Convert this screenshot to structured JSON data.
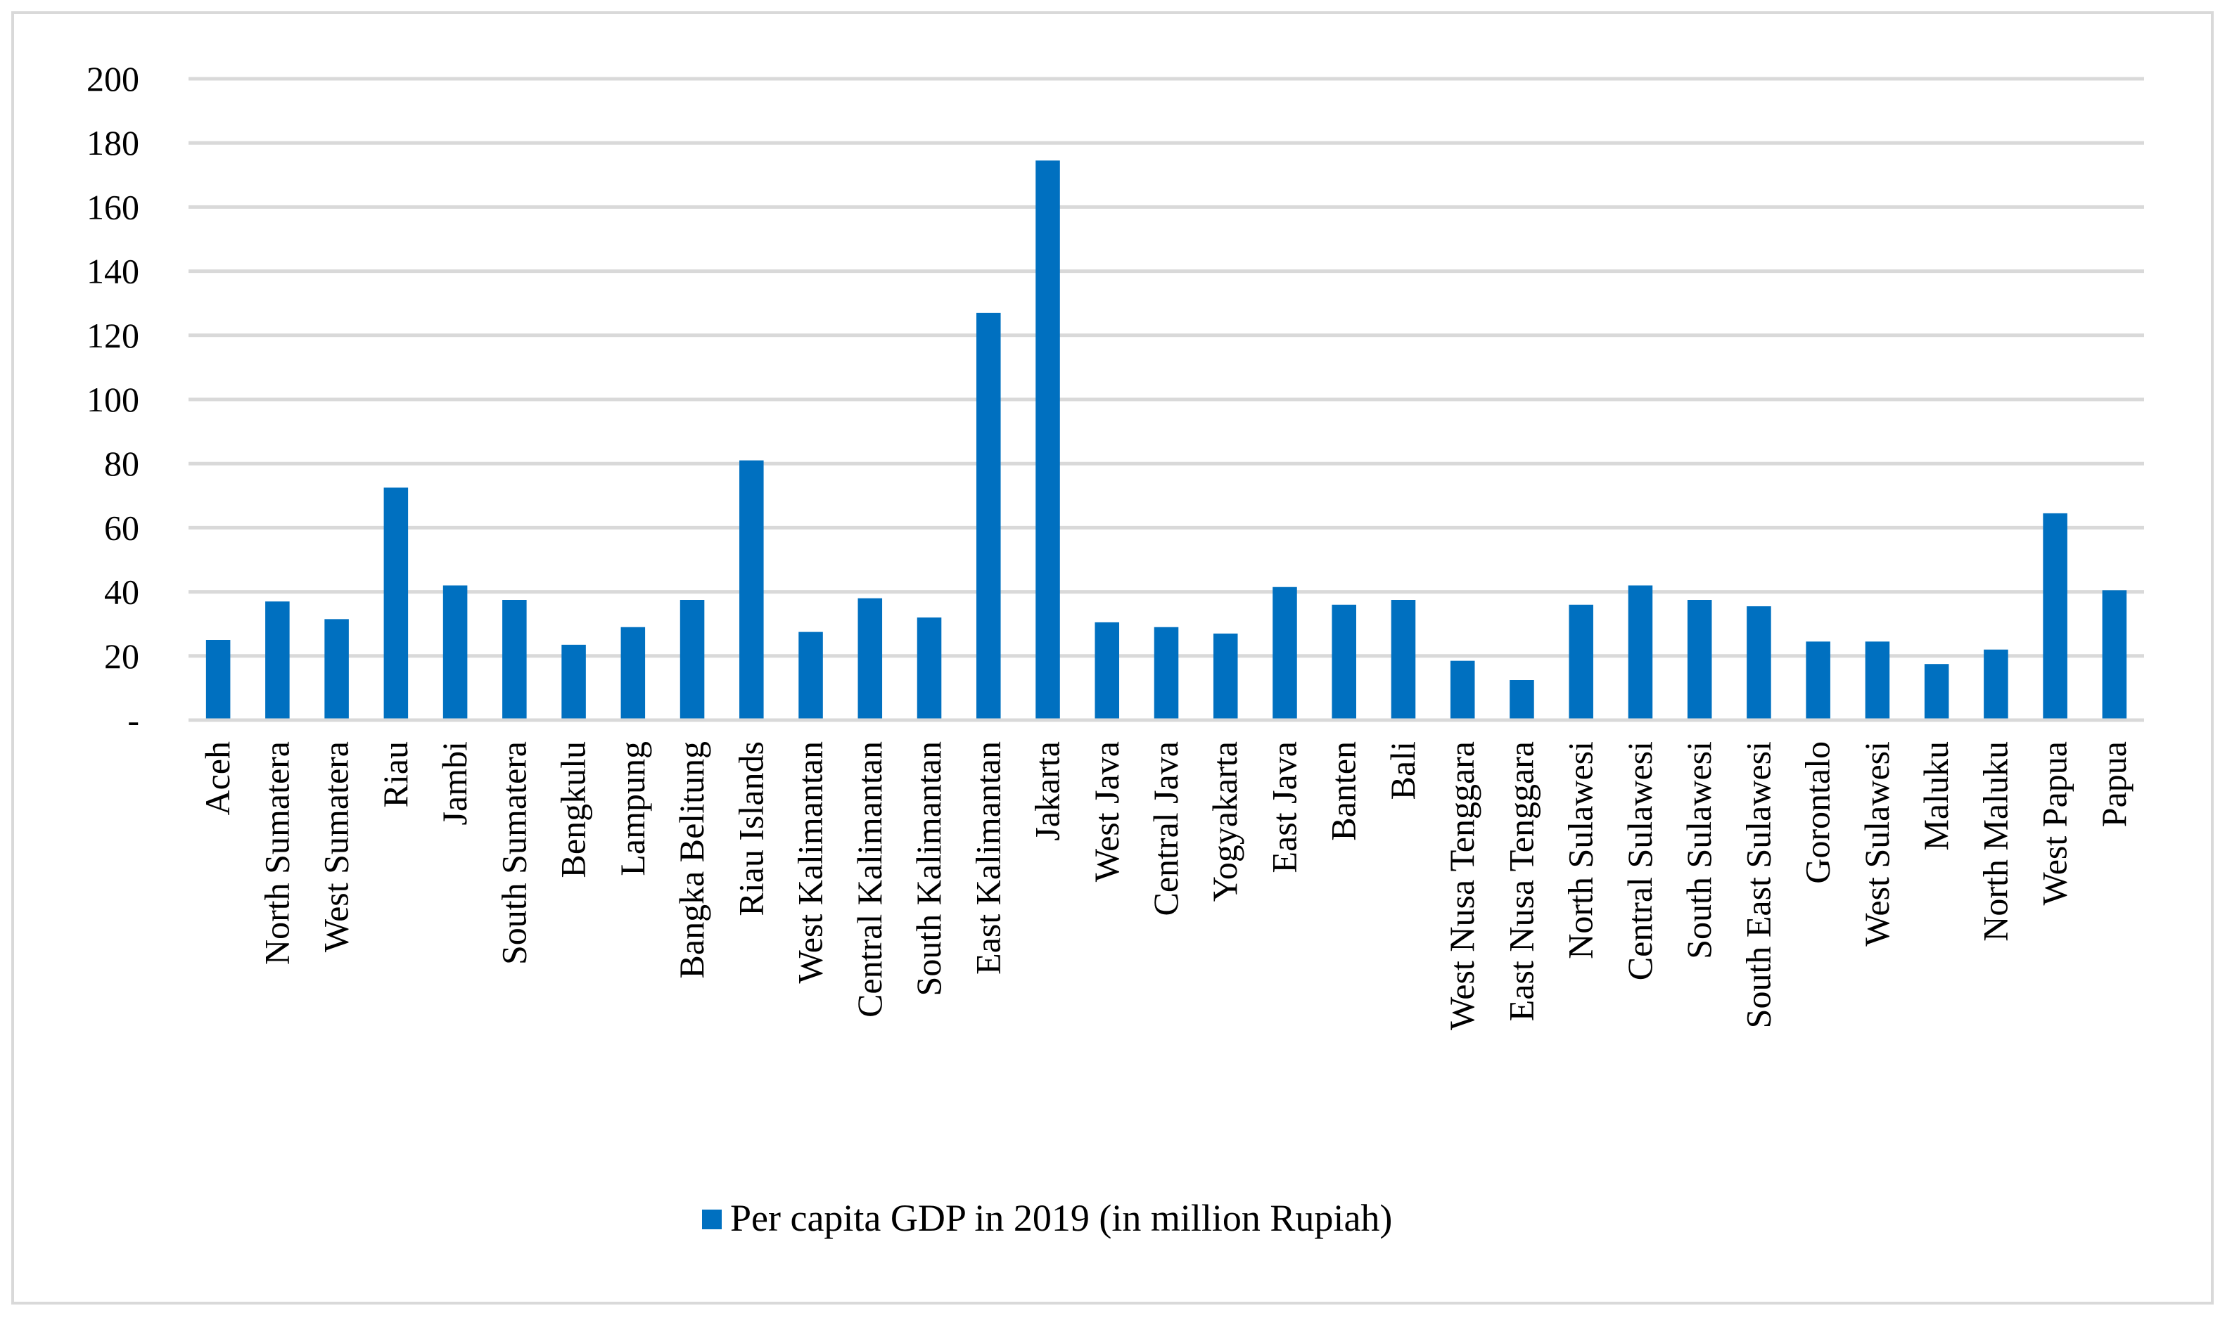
{
  "chart_data": {
    "type": "bar",
    "title": "",
    "xlabel": "",
    "ylabel": "",
    "ylim": [
      0,
      200
    ],
    "yticks": [
      0,
      20,
      40,
      60,
      80,
      100,
      120,
      140,
      160,
      180,
      200
    ],
    "ytick_labels": [
      "-",
      "20",
      "40",
      "60",
      "80",
      "100",
      "120",
      "140",
      "160",
      "180",
      "200"
    ],
    "grid": true,
    "legend_position": "bottom",
    "categories": [
      "Aceh",
      "North Sumatera",
      "West Sumatera",
      "Riau",
      "Jambi",
      "South Sumatera",
      "Bengkulu",
      "Lampung",
      "Bangka Belitung",
      "Riau Islands",
      "West Kalimantan",
      "Central Kalimantan",
      "South Kalimantan",
      "East Kalimantan",
      "Jakarta",
      "West Java",
      "Central Java",
      "Yogyakarta",
      "East Java",
      "Banten",
      "Bali",
      "West Nusa Tenggara",
      "East Nusa Tenggara",
      "North Sulawesi",
      "Central Sulawesi",
      "South Sulawesi",
      "South East Sulawesi",
      "Gorontalo",
      "West Sulawesi",
      "Maluku",
      "North Maluku",
      "West Papua",
      "Papua"
    ],
    "series": [
      {
        "name": "Per capita GDP in 2019 (in million Rupiah)",
        "color": "#0070c0",
        "values": [
          25,
          37,
          31.5,
          72.5,
          42,
          37.5,
          23.5,
          29,
          37.5,
          81,
          27.5,
          38,
          32,
          127,
          174.5,
          30.5,
          29,
          27,
          41.5,
          36,
          37.5,
          18.5,
          12.5,
          36,
          42,
          37.5,
          35.5,
          24.5,
          24.5,
          17.5,
          22,
          64.5,
          40.5
        ]
      }
    ]
  }
}
